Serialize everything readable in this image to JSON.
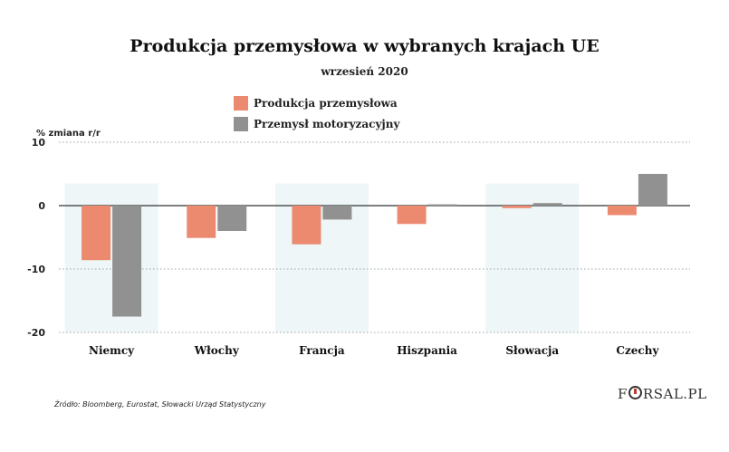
{
  "colors": {
    "production": "#ec8a70",
    "automotive": "#919191",
    "highlight": "#eef6f8",
    "grid": "#9aa4a8",
    "zero": "#333333"
  },
  "source": "Źródło: Bloomberg, Eurostat, Słowacki Urząd Statystyczny",
  "logo": {
    "prefix": "F",
    "suffix": "RSAL.PL"
  },
  "chart_data": {
    "type": "bar",
    "title": "Produkcja przemysłowa w wybranych krajach UE",
    "subtitle": "wrzesień 2020",
    "ylabel": "% zmiana r/r",
    "xlabel": "",
    "ylim": [
      -20,
      10
    ],
    "yticks": [
      10,
      0,
      -10,
      -20
    ],
    "grid": true,
    "legend_position": "top-left",
    "categories": [
      "Niemcy",
      "Włochy",
      "Francja",
      "Hiszpania",
      "Słowacja",
      "Czechy"
    ],
    "highlighted_categories": [
      "Niemcy",
      "Francja",
      "Słowacja"
    ],
    "series": [
      {
        "name": "Produkcja przemysłowa",
        "values": [
          -8.6,
          -5.1,
          -6.1,
          -2.9,
          -0.4,
          -1.5
        ]
      },
      {
        "name": "Przemysł motoryzacyjny",
        "values": [
          -17.5,
          -4.0,
          -2.2,
          0.2,
          0.4,
          5.0
        ]
      }
    ]
  }
}
